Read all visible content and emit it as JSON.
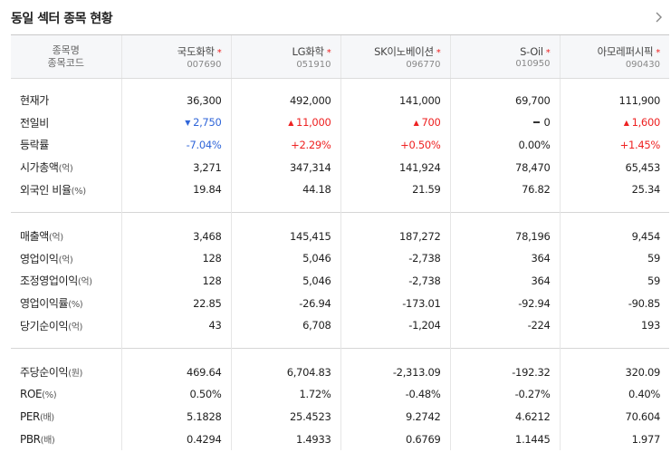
{
  "title": "동일 섹터 종목 현황",
  "header": {
    "label_name": "종목명",
    "label_code": "종목코드",
    "star": "*"
  },
  "stocks": [
    {
      "name": "국도화학",
      "code": "007690"
    },
    {
      "name": "LG화학",
      "code": "051910"
    },
    {
      "name": "SK이노베이션",
      "code": "096770"
    },
    {
      "name": "S-Oil",
      "code": "010950"
    },
    {
      "name": "아모레퍼시픽",
      "code": "090430"
    }
  ],
  "rows": {
    "price": {
      "label": "현재가",
      "unit": "",
      "values": [
        "36,300",
        "492,000",
        "141,000",
        "69,700",
        "111,900"
      ]
    },
    "change": {
      "label": "전일비",
      "unit": "",
      "values": [
        "2,750",
        "11,000",
        "700",
        "0",
        "1,600"
      ],
      "directions": [
        "down",
        "up",
        "up",
        "flat",
        "up"
      ]
    },
    "rate": {
      "label": "등락률",
      "unit": "",
      "values": [
        "-7.04%",
        "+2.29%",
        "+0.50%",
        "0.00%",
        "+1.45%"
      ],
      "directions": [
        "down",
        "up",
        "up",
        "flat",
        "up"
      ]
    },
    "mcap": {
      "label": "시가총액",
      "unit": "(억)",
      "values": [
        "3,271",
        "347,314",
        "141,924",
        "78,470",
        "65,453"
      ]
    },
    "foreign": {
      "label": "외국인 비율",
      "unit": "(%)",
      "values": [
        "19.84",
        "44.18",
        "21.59",
        "76.82",
        "25.34"
      ]
    },
    "sales": {
      "label": "매출액",
      "unit": "(억)",
      "values": [
        "3,468",
        "145,415",
        "187,272",
        "78,196",
        "9,454"
      ]
    },
    "op": {
      "label": "영업이익",
      "unit": "(억)",
      "values": [
        "128",
        "5,046",
        "-2,738",
        "364",
        "59"
      ]
    },
    "adj_op": {
      "label": "조정영업이익",
      "unit": "(억)",
      "values": [
        "128",
        "5,046",
        "-2,738",
        "364",
        "59"
      ]
    },
    "op_margin": {
      "label": "영업이익률",
      "unit": "(%)",
      "values": [
        "22.85",
        "-26.94",
        "-173.01",
        "-92.94",
        "-90.85"
      ]
    },
    "net": {
      "label": "당기순이익",
      "unit": "(억)",
      "values": [
        "43",
        "6,708",
        "-1,204",
        "-224",
        "193"
      ]
    },
    "eps": {
      "label": "주당순이익",
      "unit": "(원)",
      "values": [
        "469.64",
        "6,704.83",
        "-2,313.09",
        "-192.32",
        "320.09"
      ]
    },
    "roe": {
      "label": "ROE",
      "unit": "(%)",
      "values": [
        "0.50%",
        "1.72%",
        "-0.48%",
        "-0.27%",
        "0.40%"
      ]
    },
    "per": {
      "label": "PER",
      "unit": "(배)",
      "values": [
        "5.1828",
        "25.4523",
        "9.2742",
        "4.6212",
        "70.604"
      ]
    },
    "pbr": {
      "label": "PBR",
      "unit": "(배)",
      "values": [
        "0.4294",
        "1.4933",
        "0.6769",
        "1.1445",
        "1.977"
      ]
    }
  },
  "icons": {
    "more": "chevron-right-icon"
  },
  "colors": {
    "up": "#e22222",
    "down": "#3066d9",
    "header_bg": "#f6f7f9"
  }
}
